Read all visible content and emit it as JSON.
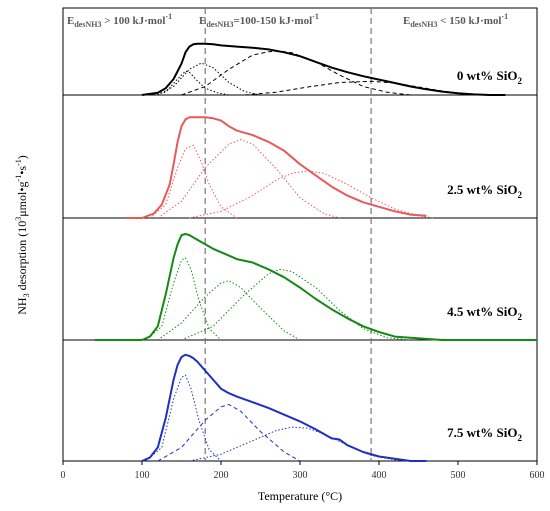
{
  "chart_data": {
    "type": "line",
    "xlabel": "Temperature (°C)",
    "ylabel_parts": {
      "base": "NH",
      "sub3": "3",
      "rest": " desorption (10",
      "exp": "3",
      "unit1": "μmol•g",
      "exp2": "-1",
      "unit2": "•s",
      "exp3": "-1",
      "close": ")"
    },
    "xlim": [
      0,
      600
    ],
    "x_ticks": [
      0,
      100,
      200,
      300,
      400,
      500,
      600
    ],
    "vlines": [
      180,
      390
    ],
    "zones": [
      {
        "lead": "E",
        "sub": "desNH3",
        "rest": " > 100 kJ·mol",
        "sup": "-1"
      },
      {
        "lead": "E",
        "sub": "desNH3",
        "rest": "=100-150 kJ·mol",
        "sup": "-1"
      },
      {
        "lead": "E",
        "sub": "desNH3",
        "rest": " < 150 kJ·mol",
        "sup": "-1"
      }
    ],
    "panels": [
      {
        "label_main": "0 wt% SiO",
        "label_sub": "2",
        "color": "#000000",
        "ylim": [
          0,
          1
        ],
        "total": {
          "x": [
            100,
            120,
            130,
            140,
            150,
            155,
            160,
            165,
            170,
            180,
            190,
            200,
            210,
            220,
            240,
            260,
            280,
            300,
            320,
            340,
            360,
            380,
            400,
            420,
            440,
            460,
            480,
            500,
            520,
            540,
            560
          ],
          "y": [
            0.0,
            0.04,
            0.12,
            0.28,
            0.55,
            0.75,
            0.85,
            0.89,
            0.9,
            0.9,
            0.89,
            0.87,
            0.86,
            0.85,
            0.83,
            0.8,
            0.75,
            0.68,
            0.58,
            0.48,
            0.4,
            0.33,
            0.27,
            0.21,
            0.15,
            0.1,
            0.06,
            0.03,
            0.01,
            0.0,
            0.0
          ]
        },
        "components": [
          {
            "x": [
              110,
              130,
              145,
              155,
              160,
              170,
              180,
              195,
              210
            ],
            "y": [
              0.0,
              0.05,
              0.28,
              0.42,
              0.4,
              0.25,
              0.12,
              0.04,
              0.0
            ],
            "dash": "1.5,2"
          },
          {
            "x": [
              120,
              140,
              160,
              175,
              190,
              210,
              230,
              250
            ],
            "y": [
              0.0,
              0.15,
              0.45,
              0.56,
              0.48,
              0.22,
              0.06,
              0.0
            ],
            "dash": "1.5,2"
          },
          {
            "x": [
              150,
              180,
              210,
              240,
              260,
              275,
              290,
              320,
              350,
              380,
              410,
              440
            ],
            "y": [
              0.0,
              0.15,
              0.45,
              0.7,
              0.76,
              0.77,
              0.74,
              0.58,
              0.35,
              0.15,
              0.05,
              0.0
            ],
            "dash": "4,3"
          },
          {
            "x": [
              230,
              270,
              310,
              350,
              390,
              420,
              450,
              480,
              510,
              540
            ],
            "y": [
              0.0,
              0.05,
              0.14,
              0.22,
              0.24,
              0.21,
              0.14,
              0.07,
              0.02,
              0.0
            ],
            "dash": "4,3"
          }
        ]
      },
      {
        "label_main": "2.5 wt% SiO",
        "label_sub": "2",
        "color": "#e8595b",
        "ylim": [
          0,
          1
        ],
        "total": {
          "x": [
            80,
            100,
            115,
            125,
            135,
            140,
            145,
            150,
            155,
            160,
            170,
            180,
            190,
            200,
            210,
            220,
            240,
            260,
            280,
            300,
            320,
            340,
            360,
            380,
            400,
            420,
            440,
            460
          ],
          "y": [
            0.0,
            0.0,
            0.04,
            0.12,
            0.3,
            0.48,
            0.68,
            0.82,
            0.88,
            0.9,
            0.9,
            0.9,
            0.89,
            0.87,
            0.82,
            0.78,
            0.74,
            0.68,
            0.6,
            0.48,
            0.38,
            0.28,
            0.2,
            0.14,
            0.1,
            0.06,
            0.03,
            0.02
          ]
        },
        "components": [
          {
            "x": [
              110,
              130,
              145,
              155,
              165,
              175,
              185,
              200,
              220
            ],
            "y": [
              0.0,
              0.12,
              0.45,
              0.62,
              0.65,
              0.5,
              0.3,
              0.1,
              0.0
            ],
            "dash": "1.5,2"
          },
          {
            "x": [
              120,
              150,
              180,
              210,
              225,
              240,
              270,
              300,
              330,
              350
            ],
            "y": [
              0.0,
              0.15,
              0.45,
              0.66,
              0.7,
              0.66,
              0.44,
              0.18,
              0.04,
              0.0
            ],
            "dash": "1.5,2"
          },
          {
            "x": [
              160,
              200,
              240,
              270,
              290,
              310,
              330,
              360,
              390,
              420,
              450,
              470
            ],
            "y": [
              0.0,
              0.06,
              0.2,
              0.34,
              0.4,
              0.42,
              0.4,
              0.3,
              0.18,
              0.08,
              0.02,
              0.0
            ],
            "dash": "1.5,2"
          }
        ]
      },
      {
        "label_main": "4.5 wt% SiO",
        "label_sub": "2",
        "color": "#148a14",
        "ylim": [
          0,
          1
        ],
        "total": {
          "x": [
            40,
            100,
            110,
            120,
            130,
            140,
            145,
            150,
            155,
            160,
            170,
            180,
            190,
            200,
            210,
            220,
            240,
            260,
            280,
            300,
            320,
            340,
            360,
            380,
            400,
            420,
            440,
            460,
            480,
            520,
            560,
            600
          ],
          "y": [
            0.0,
            0.0,
            0.03,
            0.12,
            0.4,
            0.72,
            0.84,
            0.92,
            0.93,
            0.92,
            0.88,
            0.84,
            0.8,
            0.77,
            0.74,
            0.71,
            0.68,
            0.62,
            0.55,
            0.46,
            0.36,
            0.27,
            0.19,
            0.12,
            0.07,
            0.03,
            0.02,
            0.01,
            0.0,
            0.0,
            0.0,
            0.0
          ]
        },
        "components": [
          {
            "x": [
              105,
              125,
              140,
              150,
              155,
              162,
              172,
              185,
              200
            ],
            "y": [
              0.0,
              0.12,
              0.5,
              0.7,
              0.72,
              0.62,
              0.35,
              0.1,
              0.0
            ],
            "dash": "1.5,2"
          },
          {
            "x": [
              120,
              150,
              180,
              200,
              210,
              225,
              250,
              280,
              300
            ],
            "y": [
              0.0,
              0.15,
              0.38,
              0.5,
              0.52,
              0.46,
              0.28,
              0.08,
              0.0
            ],
            "dash": "1.5,2"
          },
          {
            "x": [
              150,
              190,
              230,
              260,
              275,
              290,
              320,
              350,
              380,
              410,
              440
            ],
            "y": [
              0.0,
              0.12,
              0.4,
              0.58,
              0.62,
              0.6,
              0.46,
              0.26,
              0.1,
              0.02,
              0.0
            ],
            "dash": "1.5,2"
          }
        ]
      },
      {
        "label_main": "7.5 wt% SiO",
        "label_sub": "2",
        "color": "#1f2fbf",
        "ylim": [
          0,
          1
        ],
        "total": {
          "x": [
            100,
            110,
            120,
            130,
            140,
            145,
            150,
            155,
            160,
            165,
            170,
            180,
            190,
            200,
            210,
            220,
            240,
            260,
            280,
            300,
            320,
            340,
            350,
            360,
            380,
            400,
            420,
            440,
            460
          ],
          "y": [
            0.0,
            0.03,
            0.12,
            0.38,
            0.72,
            0.85,
            0.92,
            0.94,
            0.93,
            0.91,
            0.88,
            0.8,
            0.72,
            0.64,
            0.6,
            0.57,
            0.52,
            0.47,
            0.41,
            0.35,
            0.28,
            0.2,
            0.19,
            0.14,
            0.08,
            0.04,
            0.02,
            0.0,
            0.0
          ]
        },
        "components": [
          {
            "x": [
              105,
              125,
              140,
              150,
              155,
              162,
              172,
              185,
              200
            ],
            "y": [
              0.0,
              0.12,
              0.55,
              0.74,
              0.76,
              0.64,
              0.36,
              0.1,
              0.0
            ],
            "dash": "1.5,2"
          },
          {
            "x": [
              120,
              150,
              180,
              200,
              210,
              225,
              250,
              280,
              300
            ],
            "y": [
              0.0,
              0.12,
              0.36,
              0.48,
              0.5,
              0.44,
              0.26,
              0.08,
              0.0
            ],
            "dash": "4,3"
          },
          {
            "x": [
              160,
              200,
              240,
              270,
              290,
              310,
              330,
              360,
              390,
              420,
              440
            ],
            "y": [
              0.0,
              0.06,
              0.18,
              0.27,
              0.3,
              0.29,
              0.24,
              0.14,
              0.05,
              0.01,
              0.0
            ],
            "dash": "1.5,2"
          }
        ]
      }
    ]
  }
}
